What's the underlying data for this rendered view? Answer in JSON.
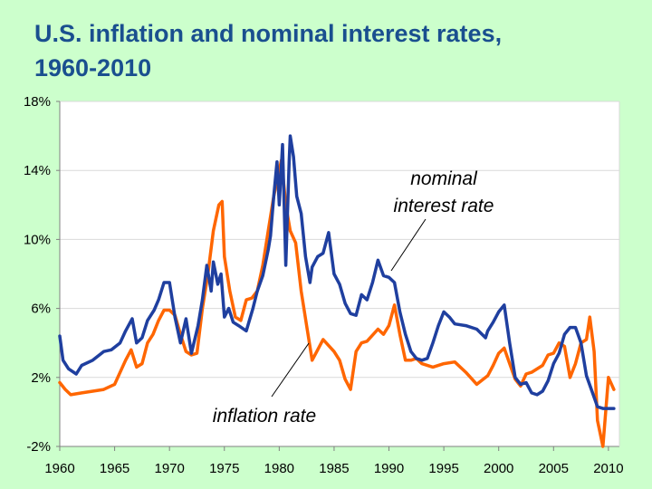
{
  "title_line1": "U.S. inflation and nominal interest rates,",
  "title_line2": "1960-2010",
  "chart_data": {
    "type": "line",
    "title": "U.S. inflation and nominal interest rates, 1960-2010",
    "xlabel": "",
    "ylabel": "",
    "xlim": [
      1960,
      2011
    ],
    "ylim": [
      -2,
      18
    ],
    "x_ticks": [
      "1960",
      "1965",
      "1970",
      "1975",
      "1980",
      "1985",
      "1990",
      "1995",
      "2000",
      "2005",
      "2010"
    ],
    "y_ticks": [
      {
        "value": 18,
        "label": "18%"
      },
      {
        "value": 14,
        "label": "14%"
      },
      {
        "value": 10,
        "label": "10%"
      },
      {
        "value": 6,
        "label": "6%"
      },
      {
        "value": 2,
        "label": "2%"
      },
      {
        "value": -2,
        "label": "-2%"
      }
    ],
    "annotations": {
      "nominal_line1": "nominal",
      "nominal_line2": "interest rate",
      "inflation": "inflation rate"
    },
    "series": [
      {
        "name": "nominal interest rate",
        "color": "#1f3f9f",
        "x": [
          1960,
          1960.3,
          1960.8,
          1961.5,
          1962,
          1963,
          1964,
          1964.7,
          1965.5,
          1966,
          1966.6,
          1967,
          1967.5,
          1968,
          1968.6,
          1969,
          1969.5,
          1970,
          1970.5,
          1971,
          1971.5,
          1972,
          1972.6,
          1973,
          1973.4,
          1973.8,
          1974,
          1974.4,
          1974.7,
          1975,
          1975.4,
          1975.8,
          1976.3,
          1977,
          1977.6,
          1978,
          1978.5,
          1979,
          1979.2,
          1979.5,
          1979.8,
          1980,
          1980.3,
          1980.6,
          1980.9,
          1981,
          1981.3,
          1981.6,
          1982,
          1982.4,
          1982.8,
          1983,
          1983.5,
          1984,
          1984.5,
          1985,
          1985.5,
          1986,
          1986.5,
          1987,
          1987.5,
          1988,
          1988.5,
          1989,
          1989.5,
          1990,
          1990.5,
          1991,
          1991.5,
          1992,
          1992.5,
          1993,
          1993.5,
          1994,
          1994.5,
          1995,
          1995.5,
          1996,
          1997,
          1998,
          1998.8,
          1999,
          1999.5,
          2000,
          2000.5,
          2001,
          2001.5,
          2002,
          2002.5,
          2003,
          2003.5,
          2004,
          2004.5,
          2005,
          2005.5,
          2006,
          2006.5,
          2007,
          2007.5,
          2008,
          2008.5,
          2009,
          2009.5,
          2010,
          2010.5
        ],
        "y": [
          4.4,
          3.0,
          2.5,
          2.2,
          2.7,
          3.0,
          3.5,
          3.6,
          4.0,
          4.7,
          5.4,
          4.0,
          4.3,
          5.3,
          5.9,
          6.5,
          7.5,
          7.5,
          5.5,
          4.0,
          5.4,
          3.4,
          5.0,
          6.5,
          8.5,
          7.0,
          8.7,
          7.4,
          8.0,
          5.5,
          6.0,
          5.2,
          5.0,
          4.7,
          6.0,
          7.0,
          7.9,
          9.4,
          10.2,
          12.5,
          14.5,
          12.0,
          15.5,
          8.5,
          14.5,
          16.0,
          14.8,
          12.5,
          11.5,
          9.0,
          7.5,
          8.4,
          9.0,
          9.2,
          10.4,
          8.0,
          7.4,
          6.3,
          5.7,
          5.6,
          6.8,
          6.5,
          7.5,
          8.8,
          7.9,
          7.8,
          7.5,
          5.8,
          4.5,
          3.5,
          3.1,
          3.0,
          3.1,
          4.0,
          5.0,
          5.8,
          5.5,
          5.1,
          5.0,
          4.8,
          4.3,
          4.7,
          5.2,
          5.8,
          6.2,
          4.0,
          2.0,
          1.6,
          1.7,
          1.1,
          1.0,
          1.2,
          1.8,
          2.8,
          3.4,
          4.5,
          4.9,
          4.9,
          4.0,
          2.1,
          1.2,
          0.3,
          0.2,
          0.2,
          0.2
        ]
      },
      {
        "name": "inflation rate",
        "color": "#ff6600",
        "x": [
          1960,
          1960.5,
          1961,
          1962,
          1963,
          1964,
          1965,
          1966,
          1966.5,
          1967,
          1967.5,
          1968,
          1968.5,
          1969,
          1969.5,
          1970,
          1970.5,
          1971,
          1971.5,
          1972,
          1972.5,
          1973,
          1973.5,
          1974,
          1974.5,
          1974.8,
          1975,
          1975.5,
          1976,
          1976.5,
          1977,
          1977.5,
          1978,
          1978.5,
          1979,
          1979.5,
          1979.9,
          1980.2,
          1980.6,
          1981,
          1981.5,
          1982,
          1982.5,
          1983,
          1983.5,
          1984,
          1985,
          1985.5,
          1986,
          1986.5,
          1987,
          1987.5,
          1988,
          1989,
          1989.5,
          1990,
          1990.5,
          1991,
          1991.5,
          1992,
          1992.5,
          1993,
          1994,
          1995,
          1996,
          1997,
          1998,
          1999,
          1999.5,
          2000,
          2000.5,
          2001,
          2001.5,
          2002,
          2002.5,
          2003,
          2004,
          2004.5,
          2005,
          2005.5,
          2006,
          2006.5,
          2007,
          2007.5,
          2008,
          2008.3,
          2008.7,
          2009,
          2009.5,
          2010,
          2010.5
        ],
        "y": [
          1.7,
          1.3,
          1.0,
          1.1,
          1.2,
          1.3,
          1.6,
          3.0,
          3.6,
          2.6,
          2.8,
          4.0,
          4.5,
          5.3,
          5.9,
          5.9,
          5.6,
          4.5,
          3.5,
          3.3,
          3.4,
          6.0,
          8.0,
          10.5,
          12.0,
          12.2,
          9.0,
          7.0,
          5.5,
          5.3,
          6.5,
          6.6,
          7.0,
          8.5,
          10.5,
          12.5,
          13.7,
          14.6,
          12.0,
          10.5,
          9.8,
          7.0,
          5.0,
          3.0,
          3.6,
          4.2,
          3.5,
          3.0,
          1.9,
          1.3,
          3.5,
          4.0,
          4.1,
          4.8,
          4.5,
          5.0,
          6.2,
          4.5,
          3.0,
          3.0,
          3.1,
          2.8,
          2.6,
          2.8,
          2.9,
          2.3,
          1.6,
          2.1,
          2.7,
          3.4,
          3.7,
          2.8,
          1.9,
          1.5,
          2.2,
          2.3,
          2.7,
          3.3,
          3.4,
          4.0,
          3.8,
          2.0,
          2.8,
          4.0,
          4.2,
          5.5,
          3.5,
          -0.5,
          -2.0,
          2.0,
          1.3
        ]
      }
    ]
  }
}
